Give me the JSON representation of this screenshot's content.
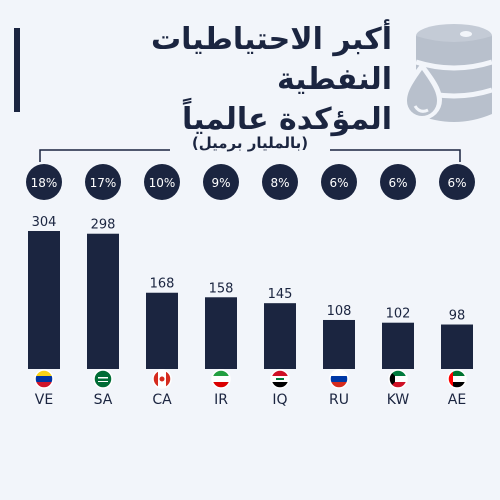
{
  "title_line1": "أكبر الاحتياطيات النفطية",
  "title_line2": "المؤكدة عالمياً",
  "unit_label": "(بالمليار برميل)",
  "colors": {
    "bar": "#1b2540",
    "background": "#f2f5fa",
    "barrel": "#b8c0cc",
    "text": "#1b2540"
  },
  "icons": {
    "logo": "oil-barrel-icon"
  },
  "chart_data": {
    "type": "bar",
    "categories": [
      "VE",
      "SA",
      "CA",
      "IR",
      "IQ",
      "RU",
      "KW",
      "AE"
    ],
    "values": [
      304,
      298,
      168,
      158,
      145,
      108,
      102,
      98
    ],
    "shares": [
      "18%",
      "17%",
      "10%",
      "9%",
      "8%",
      "6%",
      "6%",
      "6%"
    ],
    "flags": [
      "venezuela-flag-icon",
      "saudi-arabia-flag-icon",
      "canada-flag-icon",
      "iran-flag-icon",
      "iraq-flag-icon",
      "russia-flag-icon",
      "kuwait-flag-icon",
      "uae-flag-icon"
    ],
    "ylim": [
      0,
      320
    ],
    "grid": false,
    "title": "أكبر الاحتياطيات النفطية المؤكدة عالمياً",
    "ylabel": "(بالمليار برميل)",
    "xlabel": ""
  }
}
